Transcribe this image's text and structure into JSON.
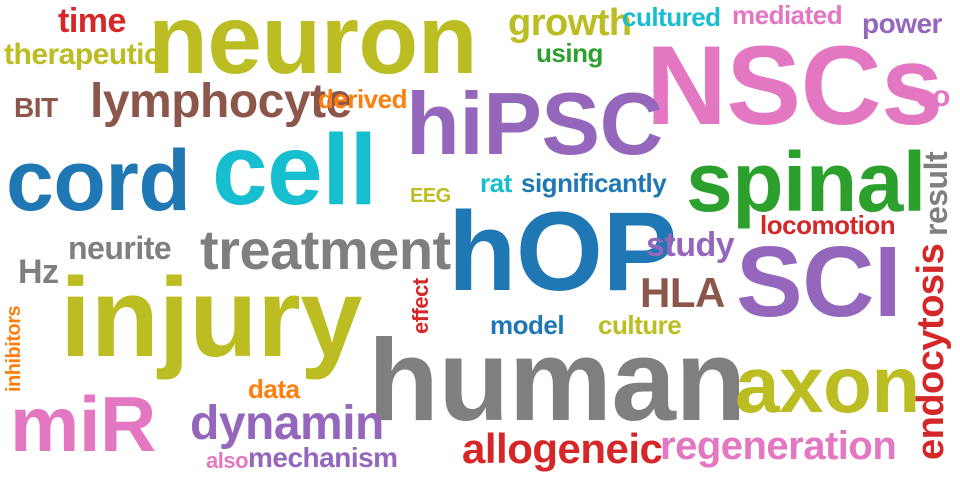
{
  "palette": {
    "olive": "#bcbd22",
    "pink": "#e377c2",
    "purple": "#9467bd",
    "blue": "#1f77b4",
    "cyan": "#17becf",
    "green": "#2ca02c",
    "red": "#d62728",
    "orange": "#ff7f0e",
    "brown": "#8c564b",
    "gray": "#7f7f7f"
  },
  "words": [
    {
      "id": "neuron",
      "text": "neuron",
      "color": "olive"
    },
    {
      "id": "nscs",
      "text": "NSCs",
      "color": "pink"
    },
    {
      "id": "hipsc",
      "text": "hiPSC",
      "color": "purple"
    },
    {
      "id": "cell",
      "text": "cell",
      "color": "cyan"
    },
    {
      "id": "cord",
      "text": "cord",
      "color": "blue"
    },
    {
      "id": "spinal",
      "text": "spinal",
      "color": "green"
    },
    {
      "id": "hop",
      "text": "hOP",
      "color": "blue"
    },
    {
      "id": "sci",
      "text": "SCI",
      "color": "purple"
    },
    {
      "id": "injury",
      "text": "injury",
      "color": "olive"
    },
    {
      "id": "human",
      "text": "human",
      "color": "gray"
    },
    {
      "id": "axon",
      "text": "axon",
      "color": "olive"
    },
    {
      "id": "mir",
      "text": "miR",
      "color": "pink"
    },
    {
      "id": "treatment",
      "text": "treatment",
      "color": "gray"
    },
    {
      "id": "lymphocyte",
      "text": "lymphocyte",
      "color": "brown"
    },
    {
      "id": "dynamin",
      "text": "dynamin",
      "color": "purple"
    },
    {
      "id": "allogeneic",
      "text": "allogeneic",
      "color": "red"
    },
    {
      "id": "regeneration",
      "text": "regeneration",
      "color": "pink"
    },
    {
      "id": "endocytosis",
      "text": "endocytosis",
      "color": "red"
    },
    {
      "id": "time",
      "text": "time",
      "color": "red"
    },
    {
      "id": "therapeutic",
      "text": "therapeutic",
      "color": "olive"
    },
    {
      "id": "growth",
      "text": "growth",
      "color": "olive"
    },
    {
      "id": "cultured",
      "text": "cultured",
      "color": "cyan"
    },
    {
      "id": "mediated",
      "text": "mediated",
      "color": "pink"
    },
    {
      "id": "power",
      "text": "power",
      "color": "purple"
    },
    {
      "id": "using",
      "text": "using",
      "color": "green"
    },
    {
      "id": "bit",
      "text": "BIT",
      "color": "brown"
    },
    {
      "id": "derived",
      "text": "derived",
      "color": "orange"
    },
    {
      "id": "co",
      "text": "co",
      "color": "pink"
    },
    {
      "id": "result",
      "text": "result",
      "color": "gray"
    },
    {
      "id": "rat",
      "text": "rat",
      "color": "cyan"
    },
    {
      "id": "significantly",
      "text": "significantly",
      "color": "blue"
    },
    {
      "id": "eeg",
      "text": "EEG",
      "color": "olive"
    },
    {
      "id": "locomotion",
      "text": "locomotion",
      "color": "red"
    },
    {
      "id": "neurite",
      "text": "neurite",
      "color": "gray"
    },
    {
      "id": "study",
      "text": "study",
      "color": "purple"
    },
    {
      "id": "hz",
      "text": "Hz",
      "color": "gray"
    },
    {
      "id": "hla",
      "text": "HLA",
      "color": "brown"
    },
    {
      "id": "effect",
      "text": "effect",
      "color": "red"
    },
    {
      "id": "model",
      "text": "model",
      "color": "blue"
    },
    {
      "id": "culture",
      "text": "culture",
      "color": "olive"
    },
    {
      "id": "inhibitors",
      "text": "inhibitors",
      "color": "orange"
    },
    {
      "id": "data",
      "text": "data",
      "color": "orange"
    },
    {
      "id": "also",
      "text": "also",
      "color": "pink"
    },
    {
      "id": "mechanism",
      "text": "mechanism",
      "color": "purple"
    }
  ]
}
